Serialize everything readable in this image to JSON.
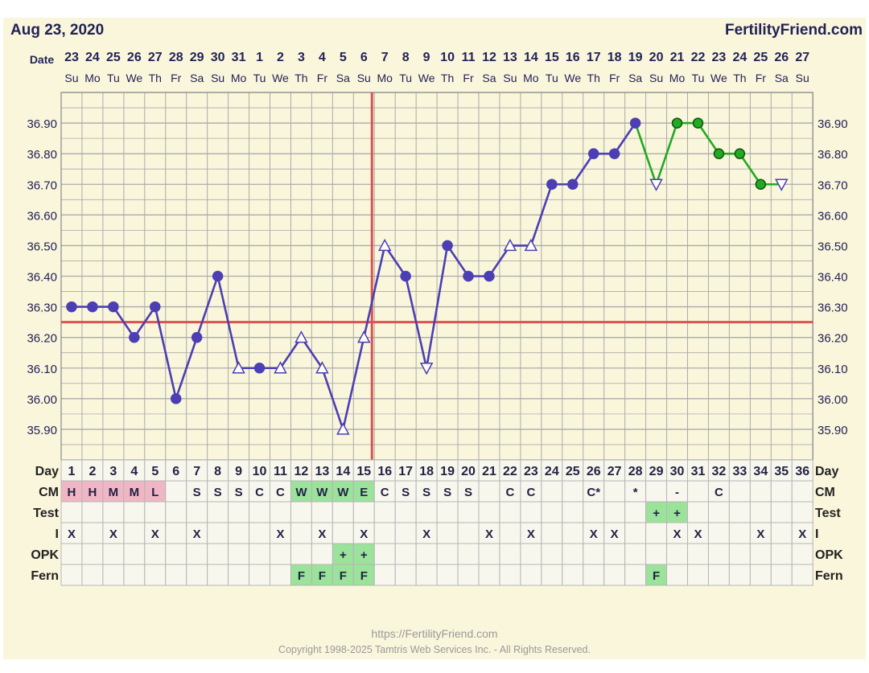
{
  "header": {
    "date": "Aug 23, 2020",
    "brand": "FertilityFriend.com"
  },
  "row_labels": {
    "date": "Date",
    "day": "Day",
    "cm": "CM",
    "test": "Test",
    "intercourse": "I",
    "opk": "OPK",
    "fern": "Fern"
  },
  "footer": {
    "url": "https://FertilityFriend.com",
    "copyright": "Copyright 1998-2025 Tamtris Web Services Inc. - All Rights Reserved."
  },
  "colors": {
    "background": "#faf6dc",
    "grid": "#aaaaaa",
    "line_pre": "#4b3fb3",
    "line_post": "#22aa22",
    "coverline": "#d9534f",
    "cm_pink": "#f0b6c6",
    "fertile_green": "#9be29b",
    "text_dark": "#222255"
  },
  "chart_data": {
    "type": "line",
    "title": "",
    "ylim": [
      35.8,
      37.0
    ],
    "yticks": [
      "36.90",
      "36.80",
      "36.70",
      "36.60",
      "36.50",
      "36.40",
      "36.30",
      "36.20",
      "36.10",
      "36.00",
      "35.90"
    ],
    "dates": [
      "23",
      "24",
      "25",
      "26",
      "27",
      "28",
      "29",
      "30",
      "31",
      "1",
      "2",
      "3",
      "4",
      "5",
      "6",
      "7",
      "8",
      "9",
      "10",
      "11",
      "12",
      "13",
      "14",
      "15",
      "16",
      "17",
      "18",
      "19",
      "20",
      "21",
      "22",
      "23",
      "24",
      "25",
      "26",
      "27"
    ],
    "weekdays": [
      "Su",
      "Mo",
      "Tu",
      "We",
      "Th",
      "Fr",
      "Sa",
      "Su",
      "Mo",
      "Tu",
      "We",
      "Th",
      "Fr",
      "Sa",
      "Su",
      "Mo",
      "Tu",
      "We",
      "Th",
      "Fr",
      "Sa",
      "Su",
      "Mo",
      "Tu",
      "We",
      "Th",
      "Fr",
      "Sa",
      "Su",
      "Mo",
      "Tu",
      "We",
      "Th",
      "Fr",
      "Sa",
      "Su"
    ],
    "cycle_days": [
      "1",
      "2",
      "3",
      "4",
      "5",
      "6",
      "7",
      "8",
      "9",
      "10",
      "11",
      "12",
      "13",
      "14",
      "15",
      "16",
      "17",
      "18",
      "19",
      "20",
      "21",
      "22",
      "23",
      "24",
      "25",
      "26",
      "27",
      "28",
      "29",
      "30",
      "31",
      "32",
      "33",
      "34",
      "35",
      "36"
    ],
    "temperatures": [
      36.3,
      36.3,
      36.3,
      36.2,
      36.3,
      36.0,
      36.2,
      36.4,
      36.1,
      36.1,
      36.1,
      36.2,
      36.1,
      35.9,
      36.2,
      36.5,
      36.4,
      36.1,
      36.5,
      36.4,
      36.4,
      36.5,
      36.5,
      36.7,
      36.7,
      36.8,
      36.8,
      36.9,
      36.7,
      36.9,
      36.9,
      36.8,
      36.8,
      36.7,
      36.7,
      null
    ],
    "marker": [
      "c",
      "c",
      "c",
      "c",
      "c",
      "c",
      "c",
      "c",
      "t",
      "c",
      "t",
      "t",
      "t",
      "t",
      "t",
      "t",
      "c",
      "d",
      "c",
      "c",
      "c",
      "t",
      "t",
      "c",
      "c",
      "c",
      "c",
      "c",
      "d",
      "c",
      "c",
      "c",
      "c",
      "c",
      "d",
      ""
    ],
    "green_from_day": 28,
    "coverline": 36.25,
    "ovulation_day": 15,
    "cm": [
      "H",
      "H",
      "M",
      "M",
      "L",
      "",
      "S",
      "S",
      "S",
      "C",
      "C",
      "W",
      "W",
      "W",
      "E",
      "C",
      "S",
      "S",
      "S",
      "S",
      "",
      "C",
      "C",
      "",
      "",
      "C*",
      "",
      "*",
      "",
      "-",
      "",
      "C",
      "",
      "",
      "",
      ""
    ],
    "cm_fill": [
      "p",
      "p",
      "p",
      "p",
      "p",
      "",
      "",
      "",
      "",
      "",
      "",
      "g",
      "g",
      "g",
      "g",
      "",
      "",
      "",
      "",
      "",
      "",
      "",
      "",
      "",
      "",
      "",
      "",
      "",
      "",
      "",
      "",
      "",
      "",
      "",
      "",
      ""
    ],
    "test": [
      "",
      "",
      "",
      "",
      "",
      "",
      "",
      "",
      "",
      "",
      "",
      "",
      "",
      "",
      "",
      "",
      "",
      "",
      "",
      "",
      "",
      "",
      "",
      "",
      "",
      "",
      "",
      "",
      "+",
      "+",
      "",
      "",
      "",
      "",
      "",
      ""
    ],
    "intercourse": [
      "X",
      "",
      "X",
      "",
      "X",
      "",
      "X",
      "",
      "",
      "",
      "X",
      "",
      "X",
      "",
      "X",
      "",
      "",
      "X",
      "",
      "",
      "X",
      "",
      "X",
      "",
      "",
      "X",
      "X",
      "",
      "",
      "X",
      "X",
      "",
      "",
      "X",
      "",
      "X"
    ],
    "opk": [
      "",
      "",
      "",
      "",
      "",
      "",
      "",
      "",
      "",
      "",
      "",
      "",
      "",
      "+",
      "+",
      "",
      "",
      "",
      "",
      "",
      "",
      "",
      "",
      "",
      "",
      "",
      "",
      "",
      "",
      "",
      "",
      "",
      "",
      "",
      "",
      ""
    ],
    "fern": [
      "",
      "",
      "",
      "",
      "",
      "",
      "",
      "",
      "",
      "",
      "",
      "F",
      "F",
      "F",
      "F",
      "",
      "",
      "",
      "",
      "",
      "",
      "",
      "",
      "",
      "",
      "",
      "",
      "",
      "F",
      "",
      "",
      "",
      "",
      "",
      "",
      ""
    ]
  }
}
